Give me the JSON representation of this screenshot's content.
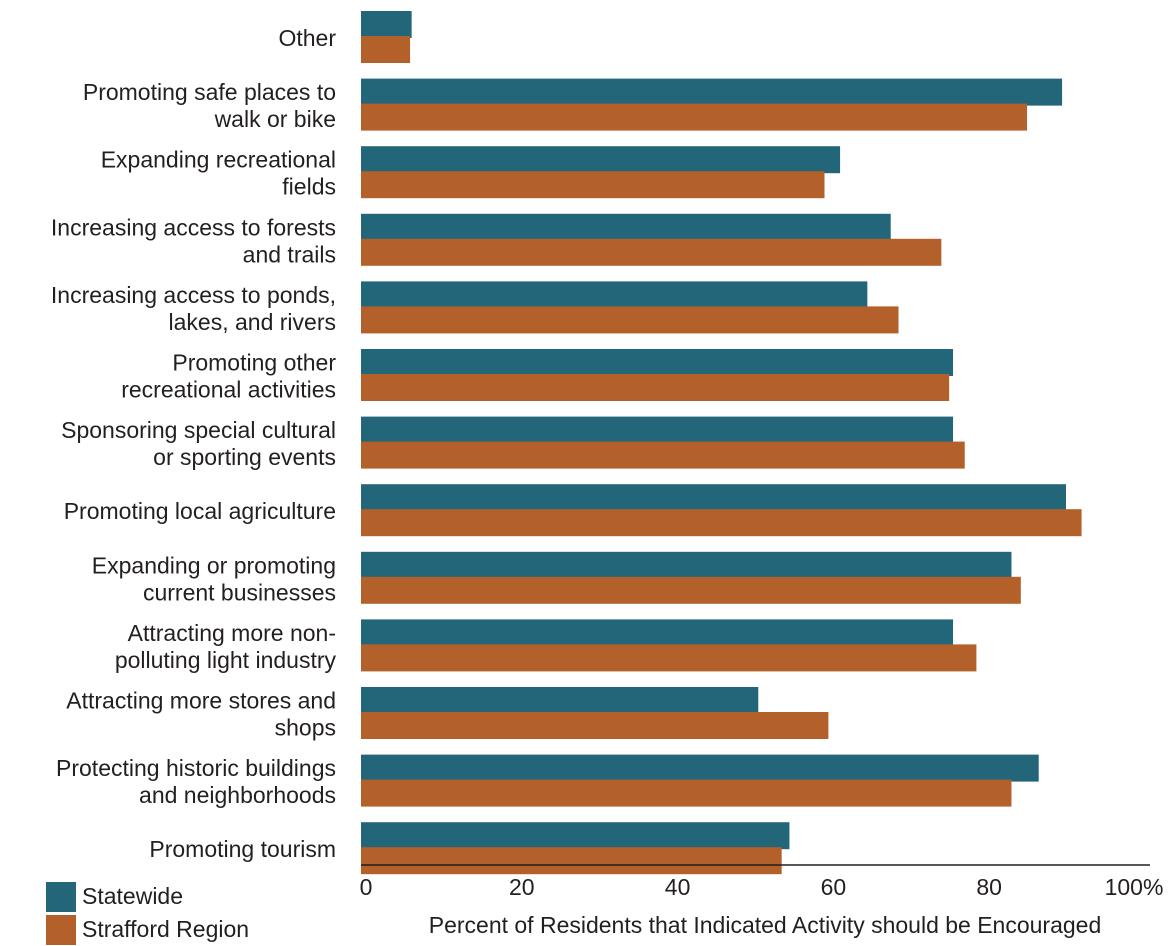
{
  "chart_data": {
    "type": "bar",
    "orientation": "horizontal",
    "categories": [
      "Other",
      "Promoting safe places to walk or bike",
      "Expanding recreational fields",
      "Increasing access to forests and trails",
      "Increasing access to ponds, lakes, and rivers",
      "Promoting other recreational activities",
      "Sponsoring special cultural or sporting events",
      "Promoting local agriculture",
      "Expanding or promoting current businesses",
      "Attracting more non-polluting light industry",
      "Attracting more stores and shops",
      "Protecting historic buildings and neighborhoods",
      "Promoting tourism"
    ],
    "category_lines": [
      [
        "Other"
      ],
      [
        "Promoting safe places to",
        "walk or bike"
      ],
      [
        "Expanding recreational",
        "fields"
      ],
      [
        "Increasing access to forests",
        "and trails"
      ],
      [
        "Increasing access to ponds,",
        "lakes, and rivers"
      ],
      [
        "Promoting other",
        "recreational activities"
      ],
      [
        "Sponsoring special cultural",
        "or sporting events"
      ],
      [
        "Promoting local agriculture"
      ],
      [
        "Expanding or promoting",
        "current businesses"
      ],
      [
        "Attracting more non-",
        "polluting light industry"
      ],
      [
        "Attracting more stores and",
        "shops"
      ],
      [
        "Protecting historic buildings",
        "and neighborhoods"
      ],
      [
        "Promoting tourism"
      ]
    ],
    "series": [
      {
        "name": "Statewide",
        "color": "#23667a",
        "values": [
          6.5,
          90,
          61.5,
          68,
          65,
          76,
          76,
          90.5,
          83.5,
          76,
          51,
          87,
          55
        ]
      },
      {
        "name": "Strafford Region",
        "color": "#b3602b",
        "values": [
          6.3,
          85.5,
          59.5,
          74.5,
          69,
          75.5,
          77.5,
          92.5,
          84.7,
          79,
          60,
          83.5,
          54
        ]
      }
    ],
    "xlabel": "Percent of Residents that Indicated Activity should be Encouraged",
    "xlim": [
      0,
      100
    ],
    "xticks": [
      "0",
      "20",
      "40",
      "60",
      "80",
      "100%"
    ],
    "grid": false,
    "legend_position": "bottom-left"
  }
}
